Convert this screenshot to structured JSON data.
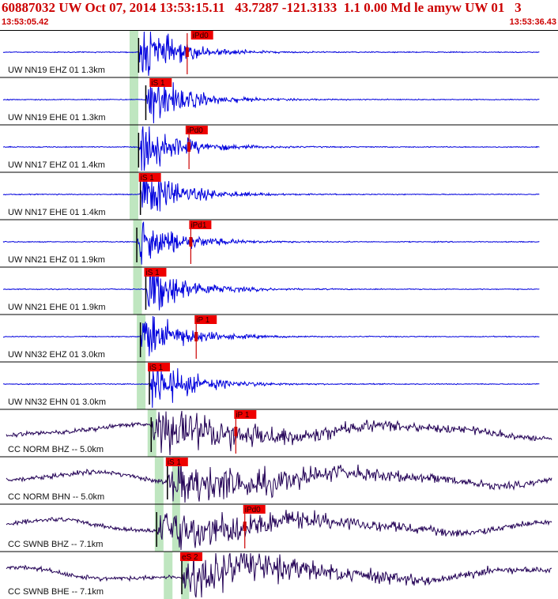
{
  "header": {
    "title": "60887032 UW Oct 07, 2014 13:53:15.11   43.7287 -121.3133  1.1 0.00 Md le amyw UW 01   3",
    "start_time": "13:53:05.42",
    "end_time": "13:53:36.43"
  },
  "colors": {
    "header_text": "#cc0000",
    "trace_short_period": "#0000dd",
    "trace_broadband": "#220055",
    "pick_box": "#ee0000",
    "pick_marker": "#cc0000",
    "window_shade": "#bfe6c0",
    "divider": "#000000"
  },
  "channels": [
    {
      "label": "UW NN19 EHZ 01 1.3km",
      "pick": "iPd0",
      "type": "sp",
      "p_sec": 7.7,
      "s_sec": 10.7,
      "win_sec": 7.2,
      "tick_sec": 10.4
    },
    {
      "label": "UW NN19 EHE 01 1.3km",
      "pick": "iS 1",
      "type": "sp",
      "p_sec": 8.1,
      "s_sec": 8.4,
      "win_sec": 7.2,
      "tick_sec": null
    },
    {
      "label": "UW NN17 EHZ 01 1.4km",
      "pick": "iPd0",
      "type": "sp",
      "p_sec": 7.7,
      "s_sec": 10.4,
      "win_sec": 7.2,
      "tick_sec": 10.5
    },
    {
      "label": "UW NN17 EHE 01 1.4km",
      "pick": "iS 1",
      "type": "sp",
      "p_sec": 7.8,
      "s_sec": 7.8,
      "win_sec": 7.2,
      "tick_sec": null
    },
    {
      "label": "UW NN21 EHZ 01 1.9km",
      "pick": "iPd1",
      "type": "sp",
      "p_sec": 7.6,
      "s_sec": 10.6,
      "win_sec": 7.4,
      "tick_sec": 10.6
    },
    {
      "label": "UW NN21 EHE 01 1.9km",
      "pick": "iS 1",
      "type": "sp",
      "p_sec": 8.1,
      "s_sec": 8.1,
      "win_sec": 7.4,
      "tick_sec": null
    },
    {
      "label": "UW NN32 EHZ 01 3.0km",
      "pick": "iP 1",
      "type": "sp",
      "p_sec": 7.8,
      "s_sec": 10.9,
      "win_sec": 7.6,
      "tick_sec": 10.9
    },
    {
      "label": "UW NN32 EHN 01 3.0km",
      "pick": "iS 1",
      "type": "sp",
      "p_sec": 8.3,
      "s_sec": 8.3,
      "win_sec": 7.6,
      "tick_sec": null
    },
    {
      "label": "CC NORM BHZ -- 5.0km",
      "pick": "iP 1",
      "type": "bb",
      "p_sec": 8.4,
      "s_sec": 13.1,
      "win_sec": 8.2,
      "tick_sec": 13.1
    },
    {
      "label": "CC NORM BHN -- 5.0km",
      "pick": "iS 1",
      "type": "bb",
      "p_sec": 9.3,
      "s_sec": 9.3,
      "win_sec": 8.6,
      "tick_sec": null
    },
    {
      "label": "CC SWNB BHZ -- 7.1km",
      "pick": "iPd0",
      "type": "bb",
      "p_sec": 8.7,
      "s_sec": 13.6,
      "win_sec": 8.6,
      "tick_sec": 13.6
    },
    {
      "label": "CC SWNB BHE -- 7.1km",
      "pick": "eS 2",
      "type": "bb",
      "p_sec": 10.1,
      "s_sec": 10.1,
      "win_sec": 9.1,
      "tick_sec": null
    }
  ],
  "time_window_sec": 31.0
}
